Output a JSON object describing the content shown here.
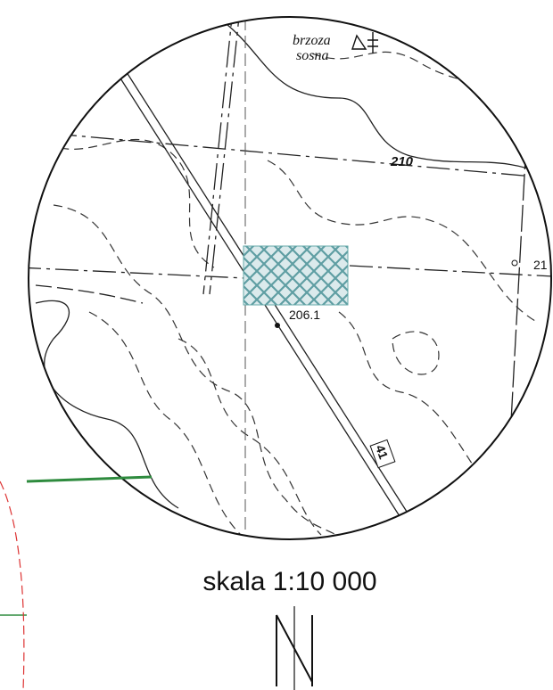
{
  "legend": {
    "items": [
      "brzoza",
      "sosna"
    ]
  },
  "labels": {
    "contour": "210",
    "elevation": "206.1",
    "edge_contour": "21",
    "road_number": "41"
  },
  "scale": "skala 1:10 000"
}
